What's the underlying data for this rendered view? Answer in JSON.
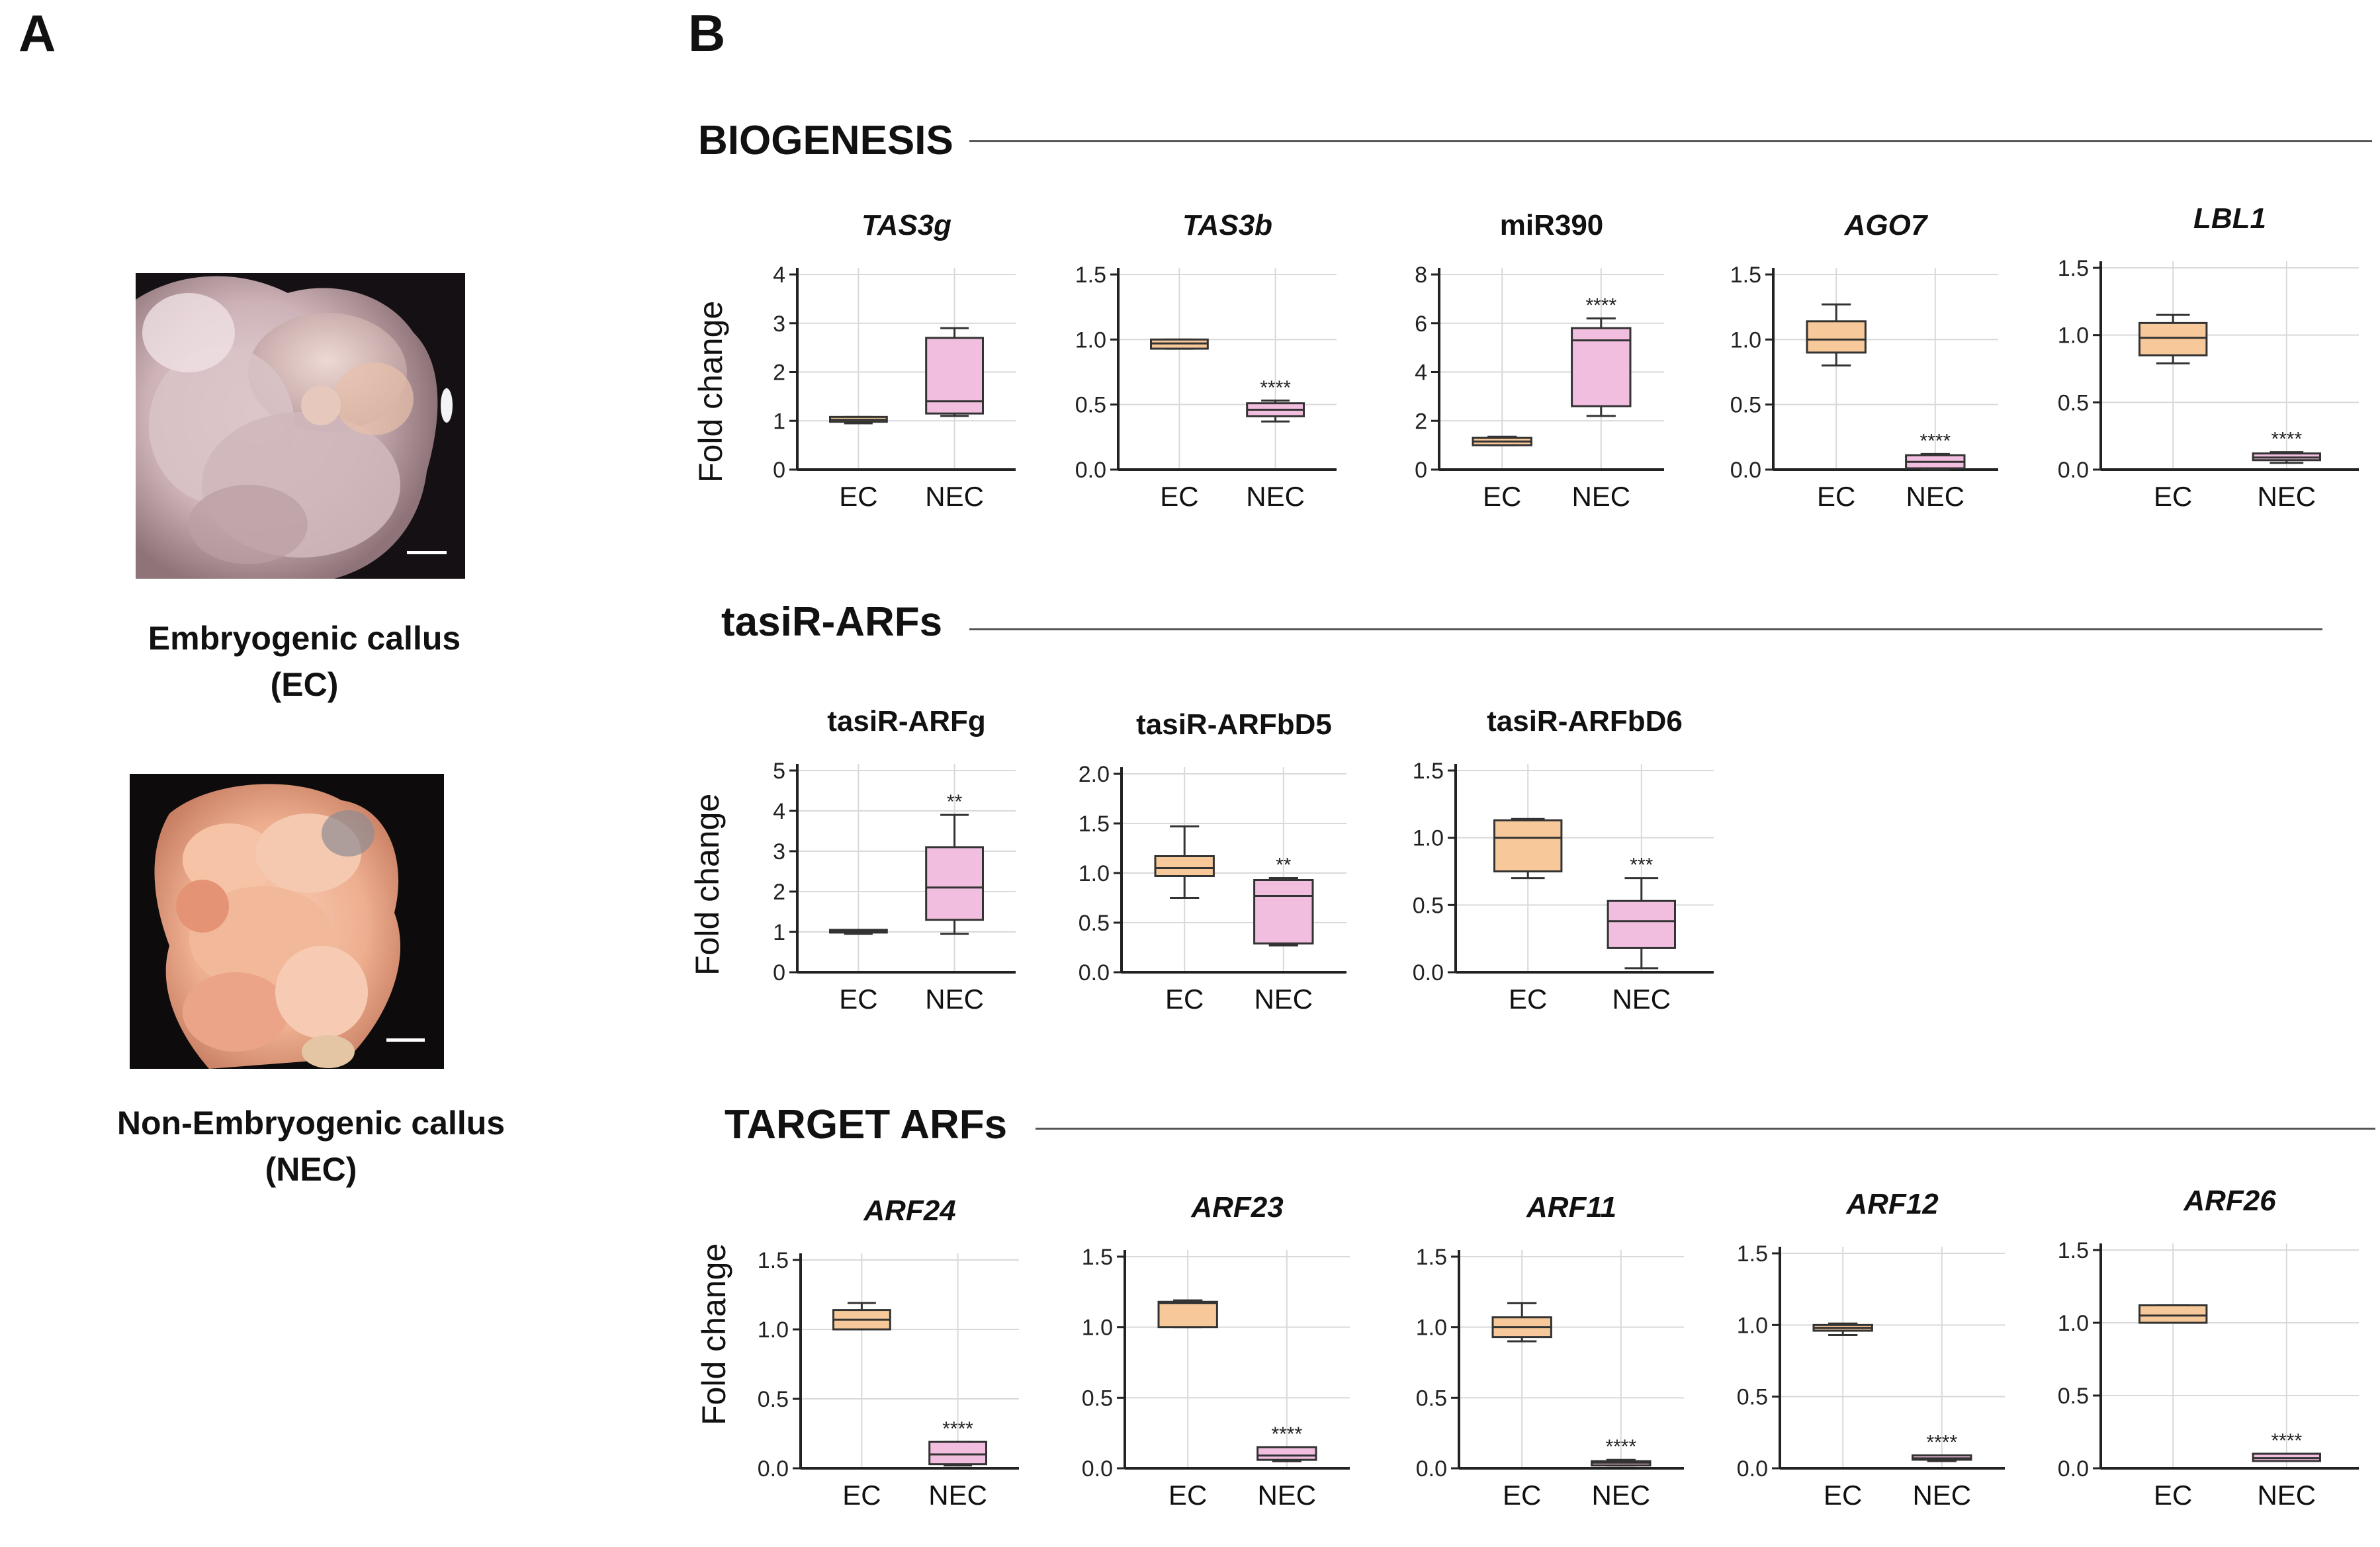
{
  "panel_a": {
    "letter": "A",
    "ec_caption": [
      "Embryogenic callus",
      "(EC)"
    ],
    "nec_caption": [
      "Non-Embryogenic callus",
      "(NEC)"
    ]
  },
  "panel_b": {
    "letter": "B",
    "sections": [
      {
        "title": "BIOGENESIS"
      },
      {
        "title": "tasiR-ARFs"
      },
      {
        "title": "TARGET ARFs"
      }
    ],
    "ylabel": "Fold change"
  },
  "colors": {
    "ec_fill": "#f7c99a",
    "nec_fill": "#f2bedf",
    "box_stroke": "#333333",
    "grid": "#d9d9d9"
  },
  "chart_data": [
    {
      "type": "box",
      "section": "BIOGENESIS",
      "title": "TAS3g",
      "italic": true,
      "categories": [
        "EC",
        "NEC"
      ],
      "ylim": [
        0,
        4
      ],
      "yticks": [
        "0",
        "1",
        "2",
        "3",
        "4"
      ],
      "boxes": [
        {
          "min": 0.95,
          "q1": 0.98,
          "median": 1.02,
          "q3": 1.08,
          "max": 1.08
        },
        {
          "min": 1.1,
          "q1": 1.15,
          "median": 1.4,
          "q3": 2.7,
          "max": 2.9
        }
      ],
      "significance": [
        "",
        ""
      ]
    },
    {
      "type": "box",
      "section": "BIOGENESIS",
      "title": "TAS3b",
      "italic": true,
      "categories": [
        "EC",
        "NEC"
      ],
      "ylim": [
        0,
        1.5
      ],
      "yticks": [
        "0.0",
        "0.5",
        "1.0",
        "1.5"
      ],
      "boxes": [
        {
          "min": 0.93,
          "q1": 0.93,
          "median": 0.97,
          "q3": 1.0,
          "max": 1.0
        },
        {
          "min": 0.37,
          "q1": 0.41,
          "median": 0.46,
          "q3": 0.51,
          "max": 0.53
        }
      ],
      "significance": [
        "",
        "****"
      ]
    },
    {
      "type": "box",
      "section": "BIOGENESIS",
      "title": "miR390",
      "italic": false,
      "categories": [
        "EC",
        "NEC"
      ],
      "ylim": [
        0,
        8
      ],
      "yticks": [
        "0",
        "2",
        "4",
        "6",
        "8"
      ],
      "boxes": [
        {
          "min": 1.0,
          "q1": 1.0,
          "median": 1.15,
          "q3": 1.3,
          "max": 1.35
        },
        {
          "min": 2.2,
          "q1": 2.6,
          "median": 5.3,
          "q3": 5.8,
          "max": 6.2
        }
      ],
      "significance": [
        "",
        "****"
      ]
    },
    {
      "type": "box",
      "section": "BIOGENESIS",
      "title": "AGO7",
      "italic": true,
      "categories": [
        "EC",
        "NEC"
      ],
      "ylim": [
        0,
        1.5
      ],
      "yticks": [
        "0.0",
        "0.5",
        "1.0",
        "1.5"
      ],
      "boxes": [
        {
          "min": 0.8,
          "q1": 0.9,
          "median": 1.0,
          "q3": 1.14,
          "max": 1.27
        },
        {
          "min": 0.0,
          "q1": 0.01,
          "median": 0.06,
          "q3": 0.11,
          "max": 0.12
        }
      ],
      "significance": [
        "",
        "****"
      ]
    },
    {
      "type": "box",
      "section": "BIOGENESIS",
      "title": "LBL1",
      "italic": true,
      "categories": [
        "EC",
        "NEC"
      ],
      "ylim": [
        0,
        1.5
      ],
      "yticks": [
        "0.0",
        "0.5",
        "1.0",
        "1.5"
      ],
      "boxes": [
        {
          "min": 0.79,
          "q1": 0.85,
          "median": 0.98,
          "q3": 1.09,
          "max": 1.15
        },
        {
          "min": 0.05,
          "q1": 0.07,
          "median": 0.09,
          "q3": 0.12,
          "max": 0.13
        }
      ],
      "significance": [
        "",
        "****"
      ]
    },
    {
      "type": "box",
      "section": "tasiR-ARFs",
      "title": "tasiR-ARFg",
      "italic": false,
      "categories": [
        "EC",
        "NEC"
      ],
      "ylim": [
        0,
        5
      ],
      "yticks": [
        "0",
        "1",
        "2",
        "3",
        "4",
        "5"
      ],
      "boxes": [
        {
          "min": 0.95,
          "q1": 1.0,
          "median": 1.02,
          "q3": 1.05,
          "max": 1.05
        },
        {
          "min": 0.95,
          "q1": 1.3,
          "median": 2.1,
          "q3": 3.1,
          "max": 3.9
        }
      ],
      "significance": [
        "",
        "**"
      ]
    },
    {
      "type": "box",
      "section": "tasiR-ARFs",
      "title": "tasiR-ARFbD5",
      "italic": false,
      "categories": [
        "EC",
        "NEC"
      ],
      "ylim": [
        0,
        2.0
      ],
      "yticks": [
        "0.0",
        "0.5",
        "1.0",
        "1.5",
        "2.0"
      ],
      "boxes": [
        {
          "min": 0.75,
          "q1": 0.97,
          "median": 1.05,
          "q3": 1.17,
          "max": 1.47
        },
        {
          "min": 0.27,
          "q1": 0.29,
          "median": 0.77,
          "q3": 0.93,
          "max": 0.95
        }
      ],
      "significance": [
        "",
        "**"
      ]
    },
    {
      "type": "box",
      "section": "tasiR-ARFs",
      "title": "tasiR-ARFbD6",
      "italic": false,
      "categories": [
        "EC",
        "NEC"
      ],
      "ylim": [
        0,
        1.5
      ],
      "yticks": [
        "0.0",
        "0.5",
        "1.0",
        "1.5"
      ],
      "boxes": [
        {
          "min": 0.7,
          "q1": 0.75,
          "median": 1.0,
          "q3": 1.13,
          "max": 1.14
        },
        {
          "min": 0.03,
          "q1": 0.18,
          "median": 0.38,
          "q3": 0.53,
          "max": 0.7
        }
      ],
      "significance": [
        "",
        "***"
      ]
    },
    {
      "type": "box",
      "section": "TARGET ARFs",
      "title": "ARF24",
      "italic": true,
      "categories": [
        "EC",
        "NEC"
      ],
      "ylim": [
        0,
        1.5
      ],
      "yticks": [
        "0.0",
        "0.5",
        "1.0",
        "1.5"
      ],
      "boxes": [
        {
          "min": 1.0,
          "q1": 1.0,
          "median": 1.07,
          "q3": 1.14,
          "max": 1.19
        },
        {
          "min": 0.02,
          "q1": 0.03,
          "median": 0.1,
          "q3": 0.19,
          "max": 0.19
        }
      ],
      "significance": [
        "",
        "****"
      ]
    },
    {
      "type": "box",
      "section": "TARGET ARFs",
      "title": "ARF23",
      "italic": true,
      "categories": [
        "EC",
        "NEC"
      ],
      "ylim": [
        0,
        1.5
      ],
      "yticks": [
        "0.0",
        "0.5",
        "1.0",
        "1.5"
      ],
      "boxes": [
        {
          "min": 1.0,
          "q1": 1.0,
          "median": 1.17,
          "q3": 1.18,
          "max": 1.19
        },
        {
          "min": 0.05,
          "q1": 0.06,
          "median": 0.09,
          "q3": 0.15,
          "max": 0.15
        }
      ],
      "significance": [
        "",
        "****"
      ]
    },
    {
      "type": "box",
      "section": "TARGET ARFs",
      "title": "ARF11",
      "italic": true,
      "categories": [
        "EC",
        "NEC"
      ],
      "ylim": [
        0,
        1.5
      ],
      "yticks": [
        "0.0",
        "0.5",
        "1.0",
        "1.5"
      ],
      "boxes": [
        {
          "min": 0.9,
          "q1": 0.93,
          "median": 1.0,
          "q3": 1.07,
          "max": 1.17
        },
        {
          "min": 0.02,
          "q1": 0.02,
          "median": 0.04,
          "q3": 0.05,
          "max": 0.06
        }
      ],
      "significance": [
        "",
        "****"
      ]
    },
    {
      "type": "box",
      "section": "TARGET ARFs",
      "title": "ARF12",
      "italic": true,
      "categories": [
        "EC",
        "NEC"
      ],
      "ylim": [
        0,
        1.5
      ],
      "yticks": [
        "0.0",
        "0.5",
        "1.0",
        "1.5"
      ],
      "boxes": [
        {
          "min": 0.93,
          "q1": 0.96,
          "median": 0.98,
          "q3": 1.0,
          "max": 1.01
        },
        {
          "min": 0.05,
          "q1": 0.06,
          "median": 0.07,
          "q3": 0.09,
          "max": 0.09
        }
      ],
      "significance": [
        "",
        "****"
      ]
    },
    {
      "type": "box",
      "section": "TARGET ARFs",
      "title": "ARF26",
      "italic": true,
      "categories": [
        "EC",
        "NEC"
      ],
      "ylim": [
        0,
        1.5
      ],
      "yticks": [
        "0.0",
        "0.5",
        "1.0",
        "1.5"
      ],
      "boxes": [
        {
          "min": 1.0,
          "q1": 1.0,
          "median": 1.05,
          "q3": 1.12,
          "max": 1.12
        },
        {
          "min": 0.05,
          "q1": 0.05,
          "median": 0.07,
          "q3": 0.1,
          "max": 0.1
        }
      ],
      "significance": [
        "",
        "****"
      ]
    }
  ]
}
